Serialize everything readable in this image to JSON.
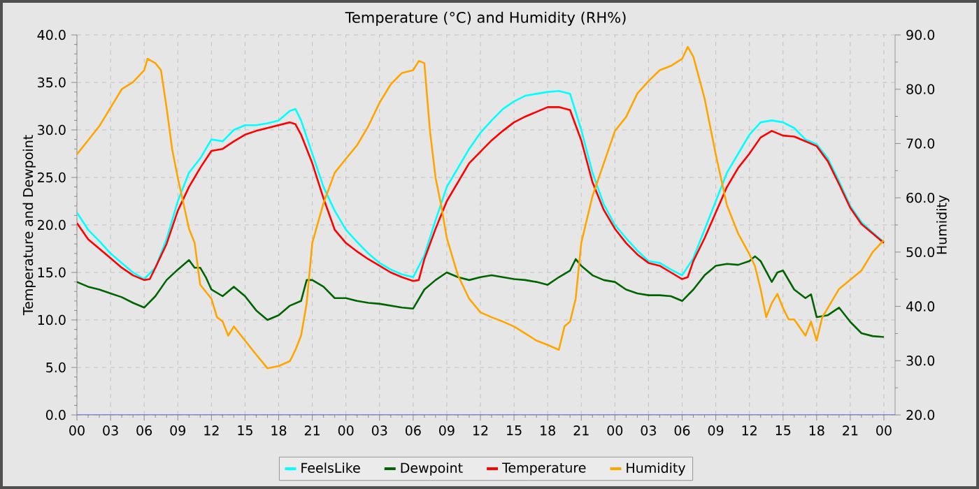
{
  "chart_data": {
    "type": "line",
    "title": "Temperature (°C) and Humidity (RH%)",
    "ylabel": "Temperature and Dewpoint",
    "y2label": "Humidity",
    "xlim": [
      0,
      73
    ],
    "xticks": [
      {
        "value": 0,
        "label": "00"
      },
      {
        "value": 3,
        "label": "03"
      },
      {
        "value": 6,
        "label": "06"
      },
      {
        "value": 9,
        "label": "09"
      },
      {
        "value": 12,
        "label": "12"
      },
      {
        "value": 15,
        "label": "15"
      },
      {
        "value": 18,
        "label": "18"
      },
      {
        "value": 21,
        "label": "21"
      },
      {
        "value": 24,
        "label": "00"
      },
      {
        "value": 27,
        "label": "03"
      },
      {
        "value": 30,
        "label": "06"
      },
      {
        "value": 33,
        "label": "09"
      },
      {
        "value": 36,
        "label": "12"
      },
      {
        "value": 39,
        "label": "15"
      },
      {
        "value": 42,
        "label": "18"
      },
      {
        "value": 45,
        "label": "21"
      },
      {
        "value": 48,
        "label": "00"
      },
      {
        "value": 51,
        "label": "03"
      },
      {
        "value": 54,
        "label": "06"
      },
      {
        "value": 57,
        "label": "09"
      },
      {
        "value": 60,
        "label": "12"
      },
      {
        "value": 63,
        "label": "15"
      },
      {
        "value": 66,
        "label": "18"
      },
      {
        "value": 69,
        "label": "21"
      },
      {
        "value": 72,
        "label": "00"
      }
    ],
    "ylim": [
      0,
      40
    ],
    "yticks": [
      {
        "value": 0,
        "label": "0.0"
      },
      {
        "value": 5,
        "label": "5.0"
      },
      {
        "value": 10,
        "label": "10.0"
      },
      {
        "value": 15,
        "label": "15.0"
      },
      {
        "value": 20,
        "label": "20.0"
      },
      {
        "value": 25,
        "label": "25.0"
      },
      {
        "value": 30,
        "label": "30.0"
      },
      {
        "value": 35,
        "label": "35.0"
      },
      {
        "value": 40,
        "label": "40.0"
      }
    ],
    "y2lim": [
      20,
      90
    ],
    "y2ticks": [
      {
        "value": 20,
        "label": "20.0"
      },
      {
        "value": 30,
        "label": "30.0"
      },
      {
        "value": 40,
        "label": "40.0"
      },
      {
        "value": 50,
        "label": "50.0"
      },
      {
        "value": 60,
        "label": "60.0"
      },
      {
        "value": 70,
        "label": "70.0"
      },
      {
        "value": 80,
        "label": "80.0"
      },
      {
        "value": 90,
        "label": "90.0"
      }
    ],
    "grid": true,
    "legend": "bottom",
    "line_style": "solid",
    "ref_lines": [
      {
        "axis": "y",
        "value": 0,
        "color": "#7b7bff"
      }
    ],
    "series": [
      {
        "name": "FeelsLike",
        "color": "#00ffff",
        "x": [
          0,
          1,
          2,
          3,
          4,
          5,
          6,
          7,
          8,
          9,
          10,
          11,
          12,
          13,
          14,
          15,
          16,
          17,
          18,
          19,
          19.5,
          20,
          21,
          22,
          23,
          24,
          25,
          26,
          27,
          28,
          29,
          30,
          31,
          32,
          33,
          34,
          35,
          36,
          37,
          38,
          39,
          40,
          41,
          42,
          43,
          44,
          45,
          46,
          47,
          48,
          49,
          50,
          51,
          52,
          53,
          54,
          55,
          56,
          57,
          58,
          59,
          60,
          61,
          62,
          63,
          64,
          65,
          66,
          67,
          68,
          69,
          70,
          71,
          72
        ],
        "values": [
          21.3,
          19.5,
          18.3,
          17,
          16,
          15,
          14.3,
          15.5,
          18.5,
          22.5,
          25.5,
          27,
          29,
          28.8,
          30,
          30.5,
          30.5,
          30.7,
          31,
          32,
          32.2,
          31,
          27.5,
          24,
          21.5,
          19.5,
          18.2,
          17,
          16,
          15.3,
          14.8,
          14.5,
          16.8,
          20.5,
          24,
          26,
          28,
          29.7,
          31,
          32.2,
          33,
          33.6,
          33.8,
          34,
          34.1,
          33.8,
          30,
          25.5,
          22.2,
          20,
          18.6,
          17.3,
          16.2,
          16,
          15.3,
          14.7,
          16.5,
          19.5,
          22.5,
          25.5,
          27.5,
          29.5,
          30.8,
          31,
          30.8,
          30.2,
          29,
          28.5,
          27,
          24.6,
          22,
          20.3,
          19.2,
          18.2
        ]
      },
      {
        "name": "Dewpoint",
        "color": "#006400",
        "x": [
          0,
          1,
          2,
          3,
          4,
          5,
          6,
          7,
          8,
          9,
          10,
          10.5,
          11,
          11.5,
          12,
          13,
          14,
          15,
          16,
          17,
          18,
          19,
          20,
          20.5,
          21,
          22,
          23,
          24,
          25,
          26,
          27,
          28,
          29,
          30,
          31,
          32,
          33,
          34,
          35,
          36,
          37,
          38,
          39,
          40,
          41,
          42,
          43,
          44,
          44.5,
          45,
          46,
          47,
          48,
          49,
          50,
          51,
          52,
          53,
          54,
          55,
          56,
          57,
          58,
          59,
          60,
          60.5,
          61,
          62,
          62.5,
          63,
          64,
          65,
          65.5,
          66,
          67,
          68,
          69,
          70,
          71,
          72
        ],
        "values": [
          14,
          13.5,
          13.2,
          12.8,
          12.4,
          11.8,
          11.3,
          12.5,
          14.2,
          15.3,
          16.3,
          15.5,
          15.5,
          14.5,
          13.2,
          12.5,
          13.5,
          12.5,
          11,
          10,
          10.5,
          11.5,
          12,
          14.2,
          14.2,
          13.5,
          12.3,
          12.3,
          12,
          11.8,
          11.7,
          11.5,
          11.3,
          11.2,
          13.2,
          14.2,
          15,
          14.5,
          14.2,
          14.5,
          14.7,
          14.5,
          14.3,
          14.2,
          14,
          13.7,
          14.5,
          15.2,
          16.4,
          15.7,
          14.7,
          14.2,
          14,
          13.2,
          12.8,
          12.6,
          12.6,
          12.5,
          12,
          13.2,
          14.7,
          15.7,
          15.9,
          15.8,
          16.2,
          16.7,
          16.2,
          14,
          15,
          15.2,
          13.2,
          12.3,
          12.7,
          10.3,
          10.5,
          11.3,
          9.8,
          8.6,
          8.3,
          8.2
        ]
      },
      {
        "name": "Temperature",
        "color": "#ff0000",
        "x": [
          0,
          1,
          2,
          3,
          4,
          5,
          6,
          6.5,
          7,
          8,
          9,
          10,
          11,
          12,
          13,
          14,
          15,
          16,
          17,
          18,
          19,
          19.5,
          20,
          21,
          22,
          23,
          24,
          25,
          26,
          27,
          28,
          29,
          30,
          30.5,
          31,
          32,
          33,
          34,
          35,
          36,
          37,
          38,
          39,
          40,
          41,
          42,
          43,
          44,
          45,
          46,
          47,
          48,
          49,
          50,
          51,
          52,
          53,
          54,
          54.5,
          55,
          56,
          57,
          58,
          59,
          60,
          61,
          62,
          63,
          64,
          65,
          66,
          67,
          68,
          69,
          70,
          71,
          72
        ],
        "values": [
          20.2,
          18.5,
          17.5,
          16.5,
          15.5,
          14.7,
          14.2,
          14.3,
          15.5,
          18,
          21.5,
          24,
          26,
          27.8,
          28,
          28.8,
          29.5,
          29.9,
          30.2,
          30.5,
          30.8,
          30.6,
          29.5,
          26.5,
          22.8,
          19.5,
          18.1,
          17.2,
          16.4,
          15.7,
          15,
          14.5,
          14.1,
          14.2,
          16.4,
          19.6,
          22.5,
          24.5,
          26.5,
          27.7,
          28.9,
          29.9,
          30.8,
          31.4,
          31.9,
          32.4,
          32.4,
          32.1,
          28.9,
          24.5,
          21.6,
          19.6,
          18.1,
          16.9,
          16,
          15.7,
          15,
          14.3,
          14.5,
          16.2,
          18.6,
          21.3,
          24,
          26,
          27.5,
          29.2,
          29.9,
          29.4,
          29.3,
          28.8,
          28.3,
          26.7,
          24.3,
          21.8,
          20.1,
          19.1,
          18.1
        ]
      },
      {
        "name": "Humidity",
        "color": "#ffa500",
        "axis": "y2",
        "x": [
          0,
          1,
          2,
          3,
          4,
          5,
          6,
          6.3,
          7,
          7.5,
          8,
          8.5,
          9,
          10,
          10.5,
          11,
          12,
          12.5,
          13,
          13.5,
          14,
          15,
          16,
          17,
          18,
          19,
          19.5,
          20,
          20.5,
          21,
          22,
          23,
          24,
          25,
          26,
          27,
          28,
          29,
          30,
          30.5,
          31,
          31.5,
          32,
          32.5,
          33,
          34,
          35,
          36,
          37,
          38,
          39,
          40,
          41,
          42,
          43,
          43.5,
          44,
          44.5,
          45,
          46,
          47,
          48,
          49,
          50,
          51,
          52,
          53,
          54,
          54.5,
          55,
          56,
          57,
          58,
          59,
          60,
          60.5,
          61,
          61.5,
          62,
          62.5,
          63,
          63.5,
          64,
          65,
          65.5,
          66,
          66.5,
          67,
          68,
          69,
          70,
          71,
          72
        ],
        "values": [
          68,
          70.6,
          73.2,
          76.6,
          80,
          81.3,
          83.5,
          85.6,
          84.8,
          83.5,
          76.6,
          68.9,
          63.7,
          54.3,
          51.7,
          44,
          41.4,
          38,
          37.2,
          34.6,
          36.3,
          33.7,
          31.1,
          28.6,
          29,
          29.9,
          32,
          34.6,
          40.6,
          51.7,
          59,
          64.6,
          67.2,
          69.7,
          73.2,
          77.5,
          80.9,
          83,
          83.5,
          85.2,
          84.8,
          72.3,
          63.7,
          58.6,
          52.6,
          45.7,
          41.4,
          38.9,
          38,
          37.2,
          36.3,
          35,
          33.7,
          32.9,
          32,
          36.3,
          37.2,
          41.4,
          51.7,
          60.3,
          66.3,
          72.3,
          74.9,
          79.2,
          81.5,
          83.5,
          84.3,
          85.6,
          87.8,
          86,
          78.3,
          68,
          58.6,
          53.4,
          49.6,
          47.4,
          43.2,
          38,
          40.6,
          42.3,
          39.7,
          37.6,
          37.6,
          34.6,
          37.2,
          33.7,
          38,
          39.7,
          43.2,
          44.9,
          46.6,
          50,
          52.2
        ]
      }
    ]
  }
}
